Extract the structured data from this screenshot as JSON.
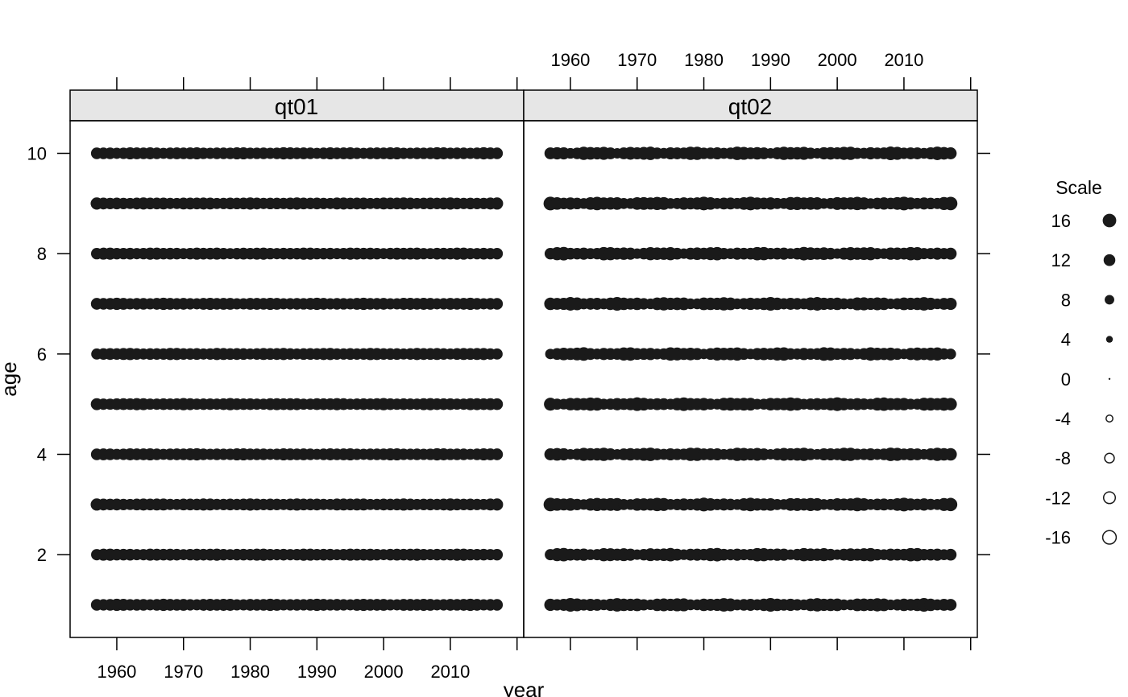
{
  "chart_data": {
    "type": "scatter",
    "subtype": "bubble",
    "xlabel": "year",
    "ylabel": "age",
    "xlim": [
      1953,
      2021
    ],
    "ylim": [
      0.35,
      10.65
    ],
    "x_ticks": [
      1960,
      1970,
      1980,
      1990,
      2000,
      2010
    ],
    "y_ticks": [
      2,
      4,
      6,
      8,
      10
    ],
    "grid": false,
    "point_color": "#1a1a1a",
    "panels": [
      {
        "name": "qt01",
        "x_range": [
          1957,
          2017
        ],
        "ages": [
          1,
          2,
          3,
          4,
          5,
          6,
          7,
          8,
          9,
          10
        ],
        "point_scale": 12,
        "variation": 1.2
      },
      {
        "name": "qt02",
        "x_range": [
          1957,
          2017
        ],
        "ages": [
          1,
          2,
          3,
          4,
          5,
          6,
          7,
          8,
          9,
          10
        ],
        "point_scale": 13,
        "variation": 3.5
      }
    ],
    "legend": {
      "title": "Scale",
      "position": "right",
      "entries": [
        {
          "label": "16",
          "value": 16,
          "filled": true
        },
        {
          "label": "12",
          "value": 12,
          "filled": true
        },
        {
          "label": "8",
          "value": 8,
          "filled": true
        },
        {
          "label": "4",
          "value": 4,
          "filled": true
        },
        {
          "label": "0",
          "value": 0,
          "filled": true
        },
        {
          "label": "-4",
          "value": -4,
          "filled": false
        },
        {
          "label": "-8",
          "value": -8,
          "filled": false
        },
        {
          "label": "-12",
          "value": -12,
          "filled": false
        },
        {
          "label": "-16",
          "value": -16,
          "filled": false
        }
      ]
    }
  }
}
